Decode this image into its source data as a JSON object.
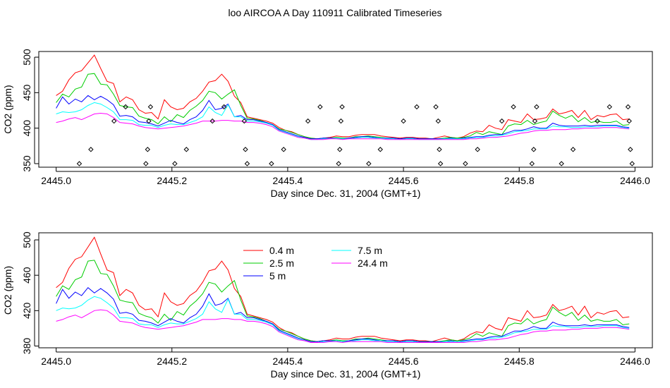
{
  "title": "loo AIRCOA A  Day 110911  Calibrated Timeseries",
  "colors": {
    "0.4 m": "#ff0000",
    "2.5 m": "#00cd00",
    "5 m": "#0000ff",
    "7.5 m": "#00ffff",
    "24.4 m": "#ff00ff",
    "points": "#000000"
  },
  "chart_data": [
    {
      "type": "line",
      "xlabel": "Day since Dec. 31, 2004 (GMT+1)",
      "ylabel": "CO2 (ppm)",
      "xlim": [
        2444.97,
        2446.03
      ],
      "ylim": [
        345,
        508
      ],
      "xticks": [
        "2445.0",
        "2445.2",
        "2445.4",
        "2445.6",
        "2445.8",
        "2446.0"
      ],
      "yticks": [
        "350",
        "400",
        "450",
        "500"
      ],
      "legend": "none",
      "x": [
        2445.0,
        2445.011,
        2445.022,
        2445.033,
        2445.044,
        2445.055,
        2445.066,
        2445.077,
        2445.088,
        2445.099,
        2445.11,
        2445.121,
        2445.132,
        2445.143,
        2445.154,
        2445.165,
        2445.176,
        2445.187,
        2445.198,
        2445.209,
        2445.22,
        2445.231,
        2445.242,
        2445.253,
        2445.264,
        2445.275,
        2445.286,
        2445.297,
        2445.308,
        2445.319,
        2445.33,
        2445.341,
        2445.352,
        2445.363,
        2445.374,
        2445.385,
        2445.396,
        2445.407,
        2445.418,
        2445.429,
        2445.44,
        2445.451,
        2445.462,
        2445.473,
        2445.484,
        2445.495,
        2445.506,
        2445.517,
        2445.528,
        2445.539,
        2445.55,
        2445.561,
        2445.572,
        2445.583,
        2445.594,
        2445.605,
        2445.616,
        2445.627,
        2445.638,
        2445.649,
        2445.66,
        2445.671,
        2445.682,
        2445.693,
        2445.704,
        2445.715,
        2445.726,
        2445.737,
        2445.748,
        2445.759,
        2445.77,
        2445.781,
        2445.792,
        2445.803,
        2445.814,
        2445.825,
        2445.836,
        2445.847,
        2445.858,
        2445.869,
        2445.88,
        2445.891,
        2445.902,
        2445.913,
        2445.924,
        2445.935,
        2445.946,
        2445.957,
        2445.968,
        2445.979,
        2445.99
      ],
      "series": [
        {
          "name": "0.4 m",
          "values": [
            446,
            452,
            468,
            478,
            481,
            492,
            503,
            484,
            466,
            463,
            437,
            444,
            440,
            426,
            421,
            422,
            413,
            440,
            430,
            426,
            428,
            437,
            442,
            452,
            465,
            467,
            476,
            466,
            445,
            436,
            416,
            414,
            412,
            410,
            407,
            401,
            397,
            395,
            391,
            388,
            386,
            385,
            386,
            387,
            389,
            388,
            388,
            390,
            391,
            391,
            391,
            389,
            388,
            387,
            386,
            387,
            387,
            386,
            386,
            385,
            387,
            389,
            387,
            386,
            388,
            393,
            396,
            395,
            404,
            400,
            398,
            412,
            410,
            408,
            420,
            412,
            413,
            415,
            427,
            420,
            422,
            425,
            415,
            425,
            412,
            418,
            416,
            419,
            420,
            412,
            413
          ]
        },
        {
          "name": "2.5 m",
          "values": [
            436,
            448,
            444,
            455,
            458,
            476,
            477,
            462,
            461,
            448,
            432,
            430,
            429,
            417,
            414,
            412,
            406,
            416,
            409,
            419,
            415,
            425,
            431,
            439,
            452,
            450,
            441,
            448,
            454,
            432,
            414,
            413,
            411,
            408,
            405,
            399,
            397,
            394,
            391,
            388,
            386,
            385,
            386,
            386,
            387,
            386,
            386,
            388,
            388,
            389,
            388,
            387,
            386,
            386,
            385,
            386,
            386,
            385,
            385,
            385,
            385,
            386,
            387,
            386,
            387,
            389,
            394,
            391,
            395,
            393,
            391,
            403,
            406,
            405,
            411,
            405,
            408,
            410,
            424,
            418,
            414,
            418,
            409,
            415,
            408,
            410,
            408,
            408,
            410,
            404,
            405
          ]
        },
        {
          "name": "5 m",
          "values": [
            428,
            444,
            434,
            441,
            437,
            446,
            440,
            445,
            440,
            433,
            417,
            418,
            416,
            409,
            408,
            406,
            403,
            407,
            411,
            408,
            406,
            412,
            416,
            425,
            439,
            426,
            428,
            434,
            416,
            418,
            412,
            412,
            410,
            408,
            405,
            398,
            395,
            392,
            389,
            387,
            385,
            385,
            386,
            386,
            386,
            385,
            386,
            387,
            388,
            388,
            387,
            386,
            386,
            386,
            385,
            386,
            386,
            385,
            385,
            385,
            385,
            385,
            386,
            385,
            386,
            387,
            388,
            388,
            390,
            391,
            391,
            394,
            397,
            397,
            399,
            402,
            400,
            400,
            407,
            404,
            403,
            403,
            403,
            404,
            403,
            404,
            404,
            404,
            404,
            402,
            401
          ]
        },
        {
          "name": "7.5 m",
          "values": [
            420,
            423,
            422,
            423,
            426,
            432,
            436,
            434,
            429,
            423,
            412,
            412,
            411,
            405,
            404,
            404,
            401,
            404,
            406,
            405,
            405,
            408,
            411,
            416,
            430,
            422,
            418,
            433,
            416,
            416,
            410,
            410,
            409,
            407,
            404,
            397,
            394,
            391,
            388,
            386,
            384,
            384,
            385,
            385,
            386,
            385,
            385,
            386,
            387,
            387,
            386,
            386,
            385,
            385,
            384,
            385,
            385,
            384,
            384,
            384,
            384,
            385,
            385,
            385,
            385,
            386,
            387,
            387,
            389,
            389,
            390,
            392,
            395,
            396,
            397,
            399,
            399,
            399,
            403,
            402,
            402,
            401,
            401,
            402,
            402,
            402,
            403,
            403,
            403,
            401,
            400
          ]
        },
        {
          "name": "24.4 m",
          "values": [
            408,
            410,
            413,
            415,
            412,
            416,
            420,
            421,
            420,
            415,
            408,
            407,
            406,
            403,
            401,
            400,
            399,
            400,
            401,
            402,
            403,
            405,
            407,
            410,
            410,
            410,
            411,
            411,
            410,
            410,
            408,
            408,
            407,
            405,
            402,
            396,
            393,
            390,
            387,
            386,
            384,
            384,
            384,
            385,
            385,
            384,
            385,
            385,
            385,
            385,
            385,
            385,
            384,
            384,
            384,
            384,
            384,
            384,
            384,
            384,
            384,
            384,
            384,
            384,
            384,
            385,
            385,
            386,
            387,
            387,
            388,
            389,
            391,
            393,
            394,
            396,
            397,
            397,
            398,
            398,
            398,
            399,
            399,
            400,
            400,
            400,
            401,
            401,
            401,
            400,
            399
          ]
        }
      ],
      "points": {
        "x": [
          2445.04,
          2445.06,
          2445.1,
          2445.12,
          2445.155,
          2445.158,
          2445.16,
          2445.163,
          2445.205,
          2445.225,
          2445.27,
          2445.29,
          2445.325,
          2445.327,
          2445.33,
          2445.372,
          2445.393,
          2445.435,
          2445.456,
          2445.488,
          2445.49,
          2445.492,
          2445.494,
          2445.54,
          2445.56,
          2445.6,
          2445.623,
          2445.656,
          2445.66,
          2445.662,
          2445.664,
          2445.707,
          2445.728,
          2445.77,
          2445.79,
          2445.822,
          2445.825,
          2445.827,
          2445.83,
          2445.873,
          2445.893,
          2445.935,
          2445.956,
          2445.988,
          2445.99,
          2445.992,
          2445.995
        ],
        "y": [
          350,
          370,
          410,
          430,
          350,
          370,
          410,
          430,
          350,
          370,
          410,
          430,
          410,
          370,
          350,
          350,
          370,
          410,
          430,
          350,
          370,
          410,
          430,
          350,
          370,
          410,
          430,
          430,
          410,
          370,
          350,
          350,
          370,
          410,
          430,
          350,
          370,
          410,
          430,
          350,
          370,
          410,
          430,
          430,
          410,
          370,
          350
        ]
      }
    },
    {
      "type": "line",
      "xlabel": "Day since Dec. 31, 2004 (GMT+1)",
      "ylabel": "CO2 (ppm)",
      "xlim": [
        2444.97,
        2446.03
      ],
      "ylim": [
        378,
        508
      ],
      "xticks": [
        "2445.0",
        "2445.2",
        "2445.4",
        "2445.6",
        "2445.8",
        "2446.0"
      ],
      "yticks": [
        "380",
        "420",
        "460",
        "500"
      ],
      "legend": "top-left",
      "legend_entries": [
        "0.4 m",
        "2.5 m",
        "5 m",
        "7.5 m",
        "24.4 m"
      ]
    }
  ]
}
